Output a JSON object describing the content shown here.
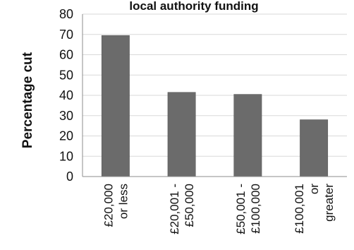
{
  "chart_data": {
    "type": "bar",
    "title": "local authority funding",
    "xlabel": "",
    "ylabel": "Percentage cut",
    "ylim": [
      0,
      80
    ],
    "yticks": [
      0,
      10,
      20,
      30,
      40,
      50,
      60,
      70,
      80
    ],
    "grid": true,
    "legend": "none",
    "categories": [
      [
        "£20,000",
        "or less"
      ],
      [
        "£20,001 -",
        "£50,000"
      ],
      [
        "£50,001 -",
        "£100,000"
      ],
      [
        "£100,001",
        "or",
        "greater"
      ]
    ],
    "values": [
      69.5,
      41.5,
      40.5,
      28
    ],
    "colors": {
      "bar": "#6b6b6b",
      "bar_edge": "#555555",
      "grid": "#d9d9d9",
      "axis": "#8c8c8c",
      "text": "#111111"
    }
  }
}
